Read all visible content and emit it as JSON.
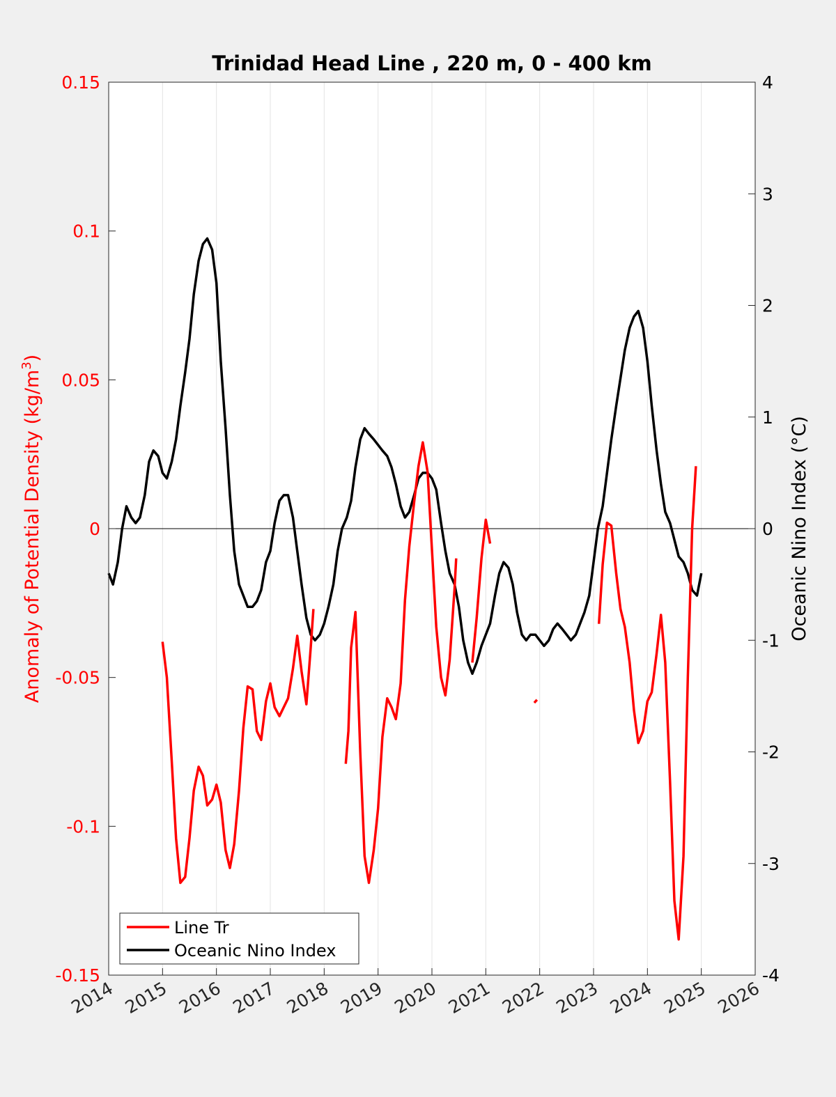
{
  "chart_data": {
    "type": "line",
    "title": "Trinidad Head Line , 220 m, 0 - 400 km",
    "xlim": [
      2014,
      2026
    ],
    "x_ticks": [
      "2014",
      "2015",
      "2016",
      "2017",
      "2018",
      "2019",
      "2020",
      "2021",
      "2022",
      "2023",
      "2024",
      "2025",
      "2026"
    ],
    "left_axis": {
      "label": "Anomaly of Potential Density (kg/m",
      "label_superscript": "3",
      "label_suffix": ")",
      "ylim": [
        -0.15,
        0.15
      ],
      "ticks": [
        "-0.15",
        "-0.1",
        "-0.05",
        "0",
        "0.05",
        "0.1",
        "0.15"
      ],
      "color": "#ff0000"
    },
    "right_axis": {
      "label": "Oceanic Nino Index (°C)",
      "ylim": [
        -4,
        4
      ],
      "ticks": [
        "-4",
        "-3",
        "-2",
        "-1",
        "0",
        "1",
        "2",
        "3",
        "4"
      ],
      "color": "#000000"
    },
    "grid": "vertical",
    "legend_position": "bottom-left",
    "series": [
      {
        "name": "Line Tr",
        "axis": "left",
        "color": "#ff0000",
        "segments": [
          [
            [
              2015.0,
              -0.038
            ],
            [
              2015.08,
              -0.05
            ],
            [
              2015.17,
              -0.078
            ],
            [
              2015.25,
              -0.104
            ],
            [
              2015.33,
              -0.119
            ],
            [
              2015.42,
              -0.117
            ],
            [
              2015.5,
              -0.104
            ],
            [
              2015.58,
              -0.088
            ],
            [
              2015.67,
              -0.08
            ],
            [
              2015.75,
              -0.083
            ],
            [
              2015.83,
              -0.093
            ],
            [
              2015.92,
              -0.091
            ],
            [
              2016.0,
              -0.086
            ],
            [
              2016.08,
              -0.092
            ],
            [
              2016.17,
              -0.108
            ],
            [
              2016.25,
              -0.114
            ],
            [
              2016.33,
              -0.106
            ],
            [
              2016.42,
              -0.088
            ],
            [
              2016.5,
              -0.067
            ],
            [
              2016.58,
              -0.053
            ],
            [
              2016.67,
              -0.054
            ],
            [
              2016.75,
              -0.068
            ],
            [
              2016.83,
              -0.071
            ],
            [
              2016.92,
              -0.058
            ],
            [
              2017.0,
              -0.052
            ],
            [
              2017.08,
              -0.06
            ],
            [
              2017.17,
              -0.063
            ],
            [
              2017.25,
              -0.06
            ],
            [
              2017.33,
              -0.057
            ],
            [
              2017.42,
              -0.047
            ],
            [
              2017.5,
              -0.036
            ],
            [
              2017.58,
              -0.048
            ],
            [
              2017.67,
              -0.059
            ],
            [
              2017.75,
              -0.04
            ],
            [
              2017.8,
              -0.027
            ]
          ],
          [
            [
              2018.4,
              -0.079
            ],
            [
              2018.45,
              -0.068
            ],
            [
              2018.5,
              -0.04
            ],
            [
              2018.58,
              -0.028
            ],
            [
              2018.67,
              -0.075
            ],
            [
              2018.75,
              -0.11
            ],
            [
              2018.83,
              -0.119
            ],
            [
              2018.92,
              -0.108
            ],
            [
              2019.0,
              -0.094
            ],
            [
              2019.08,
              -0.07
            ],
            [
              2019.17,
              -0.057
            ],
            [
              2019.25,
              -0.06
            ],
            [
              2019.33,
              -0.064
            ],
            [
              2019.42,
              -0.052
            ],
            [
              2019.5,
              -0.024
            ],
            [
              2019.58,
              -0.006
            ],
            [
              2019.67,
              0.009
            ],
            [
              2019.75,
              0.021
            ],
            [
              2019.83,
              0.029
            ],
            [
              2019.92,
              0.019
            ],
            [
              2020.0,
              -0.007
            ],
            [
              2020.08,
              -0.033
            ],
            [
              2020.17,
              -0.05
            ],
            [
              2020.25,
              -0.056
            ],
            [
              2020.33,
              -0.044
            ],
            [
              2020.42,
              -0.02
            ],
            [
              2020.45,
              -0.01
            ]
          ],
          [
            [
              2020.75,
              -0.045
            ],
            [
              2020.83,
              -0.03
            ],
            [
              2020.92,
              -0.01
            ],
            [
              2021.0,
              0.003
            ],
            [
              2021.08,
              -0.005
            ]
          ],
          [
            [
              2021.9,
              -0.0585
            ],
            [
              2021.95,
              -0.0575
            ]
          ],
          [
            [
              2023.1,
              -0.032
            ],
            [
              2023.17,
              -0.012
            ],
            [
              2023.25,
              0.002
            ],
            [
              2023.33,
              0.001
            ],
            [
              2023.42,
              -0.015
            ],
            [
              2023.5,
              -0.027
            ],
            [
              2023.58,
              -0.033
            ],
            [
              2023.67,
              -0.045
            ],
            [
              2023.75,
              -0.061
            ],
            [
              2023.83,
              -0.072
            ],
            [
              2023.92,
              -0.068
            ],
            [
              2024.0,
              -0.058
            ],
            [
              2024.08,
              -0.055
            ],
            [
              2024.17,
              -0.042
            ],
            [
              2024.25,
              -0.029
            ],
            [
              2024.33,
              -0.045
            ],
            [
              2024.42,
              -0.085
            ],
            [
              2024.5,
              -0.125
            ],
            [
              2024.58,
              -0.138
            ],
            [
              2024.67,
              -0.11
            ],
            [
              2024.75,
              -0.05
            ],
            [
              2024.83,
              0.0
            ],
            [
              2024.9,
              0.021
            ]
          ]
        ]
      },
      {
        "name": "Oceanic Nino Index",
        "axis": "right",
        "color": "#000000",
        "segments": [
          [
            [
              2014.0,
              -0.4
            ],
            [
              2014.08,
              -0.5
            ],
            [
              2014.17,
              -0.3
            ],
            [
              2014.25,
              0.0
            ],
            [
              2014.33,
              0.2
            ],
            [
              2014.42,
              0.1
            ],
            [
              2014.5,
              0.05
            ],
            [
              2014.58,
              0.1
            ],
            [
              2014.67,
              0.3
            ],
            [
              2014.75,
              0.6
            ],
            [
              2014.83,
              0.7
            ],
            [
              2014.92,
              0.65
            ],
            [
              2015.0,
              0.5
            ],
            [
              2015.08,
              0.45
            ],
            [
              2015.17,
              0.6
            ],
            [
              2015.25,
              0.8
            ],
            [
              2015.33,
              1.1
            ],
            [
              2015.42,
              1.4
            ],
            [
              2015.5,
              1.7
            ],
            [
              2015.58,
              2.1
            ],
            [
              2015.67,
              2.4
            ],
            [
              2015.75,
              2.55
            ],
            [
              2015.83,
              2.6
            ],
            [
              2015.92,
              2.5
            ],
            [
              2016.0,
              2.2
            ],
            [
              2016.08,
              1.5
            ],
            [
              2016.17,
              0.9
            ],
            [
              2016.25,
              0.3
            ],
            [
              2016.33,
              -0.2
            ],
            [
              2016.42,
              -0.5
            ],
            [
              2016.5,
              -0.6
            ],
            [
              2016.58,
              -0.7
            ],
            [
              2016.67,
              -0.7
            ],
            [
              2016.75,
              -0.65
            ],
            [
              2016.83,
              -0.55
            ],
            [
              2016.92,
              -0.3
            ],
            [
              2017.0,
              -0.2
            ],
            [
              2017.08,
              0.05
            ],
            [
              2017.17,
              0.25
            ],
            [
              2017.25,
              0.3
            ],
            [
              2017.33,
              0.3
            ],
            [
              2017.42,
              0.1
            ],
            [
              2017.5,
              -0.2
            ],
            [
              2017.58,
              -0.5
            ],
            [
              2017.67,
              -0.8
            ],
            [
              2017.75,
              -0.95
            ],
            [
              2017.83,
              -1.0
            ],
            [
              2017.92,
              -0.95
            ],
            [
              2018.0,
              -0.85
            ],
            [
              2018.08,
              -0.7
            ],
            [
              2018.17,
              -0.5
            ],
            [
              2018.25,
              -0.2
            ],
            [
              2018.33,
              0.0
            ],
            [
              2018.42,
              0.1
            ],
            [
              2018.5,
              0.25
            ],
            [
              2018.58,
              0.55
            ],
            [
              2018.67,
              0.8
            ],
            [
              2018.75,
              0.9
            ],
            [
              2018.83,
              0.85
            ],
            [
              2018.92,
              0.8
            ],
            [
              2019.0,
              0.75
            ],
            [
              2019.08,
              0.7
            ],
            [
              2019.17,
              0.65
            ],
            [
              2019.25,
              0.55
            ],
            [
              2019.33,
              0.4
            ],
            [
              2019.42,
              0.2
            ],
            [
              2019.5,
              0.1
            ],
            [
              2019.58,
              0.15
            ],
            [
              2019.67,
              0.3
            ],
            [
              2019.75,
              0.45
            ],
            [
              2019.83,
              0.5
            ],
            [
              2019.92,
              0.5
            ],
            [
              2020.0,
              0.45
            ],
            [
              2020.08,
              0.35
            ],
            [
              2020.17,
              0.05
            ],
            [
              2020.25,
              -0.2
            ],
            [
              2020.33,
              -0.4
            ],
            [
              2020.42,
              -0.5
            ],
            [
              2020.5,
              -0.7
            ],
            [
              2020.58,
              -1.0
            ],
            [
              2020.67,
              -1.2
            ],
            [
              2020.75,
              -1.3
            ],
            [
              2020.83,
              -1.2
            ],
            [
              2020.92,
              -1.05
            ],
            [
              2021.0,
              -0.95
            ],
            [
              2021.08,
              -0.85
            ],
            [
              2021.17,
              -0.6
            ],
            [
              2021.25,
              -0.4
            ],
            [
              2021.33,
              -0.3
            ],
            [
              2021.42,
              -0.35
            ],
            [
              2021.5,
              -0.5
            ],
            [
              2021.58,
              -0.75
            ],
            [
              2021.67,
              -0.95
            ],
            [
              2021.75,
              -1.0
            ],
            [
              2021.83,
              -0.95
            ],
            [
              2021.92,
              -0.95
            ],
            [
              2022.0,
              -1.0
            ],
            [
              2022.08,
              -1.05
            ],
            [
              2022.17,
              -1.0
            ],
            [
              2022.25,
              -0.9
            ],
            [
              2022.33,
              -0.85
            ],
            [
              2022.42,
              -0.9
            ],
            [
              2022.5,
              -0.95
            ],
            [
              2022.58,
              -1.0
            ],
            [
              2022.67,
              -0.95
            ],
            [
              2022.75,
              -0.85
            ],
            [
              2022.83,
              -0.75
            ],
            [
              2022.92,
              -0.6
            ],
            [
              2023.0,
              -0.3
            ],
            [
              2023.08,
              0.0
            ],
            [
              2023.17,
              0.2
            ],
            [
              2023.25,
              0.5
            ],
            [
              2023.33,
              0.8
            ],
            [
              2023.42,
              1.1
            ],
            [
              2023.5,
              1.35
            ],
            [
              2023.58,
              1.6
            ],
            [
              2023.67,
              1.8
            ],
            [
              2023.75,
              1.9
            ],
            [
              2023.83,
              1.95
            ],
            [
              2023.92,
              1.8
            ],
            [
              2024.0,
              1.5
            ],
            [
              2024.08,
              1.1
            ],
            [
              2024.17,
              0.7
            ],
            [
              2024.25,
              0.4
            ],
            [
              2024.33,
              0.15
            ],
            [
              2024.42,
              0.05
            ],
            [
              2024.5,
              -0.1
            ],
            [
              2024.58,
              -0.25
            ],
            [
              2024.67,
              -0.3
            ],
            [
              2024.75,
              -0.4
            ],
            [
              2024.83,
              -0.55
            ],
            [
              2024.92,
              -0.6
            ],
            [
              2025.0,
              -0.4
            ]
          ]
        ]
      }
    ]
  }
}
